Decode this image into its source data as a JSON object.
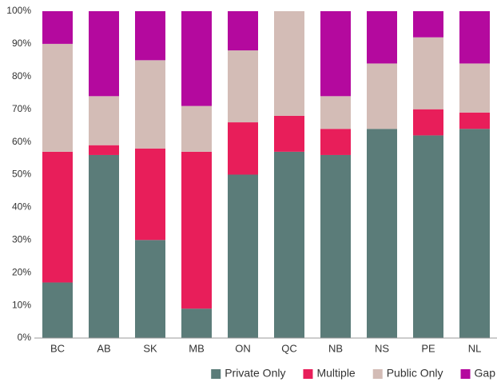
{
  "chart_data": {
    "type": "stacked_bar",
    "categories": [
      "BC",
      "AB",
      "SK",
      "MB",
      "ON",
      "QC",
      "NB",
      "NS",
      "PE",
      "NL"
    ],
    "series": [
      {
        "name": "Private Only",
        "color": "#5b7c79",
        "values": [
          17,
          56,
          30,
          9,
          50,
          57,
          56,
          64,
          62,
          64
        ]
      },
      {
        "name": "Multiple",
        "color": "#e81e5a",
        "values": [
          40,
          3,
          28,
          48,
          16,
          11,
          8,
          0,
          8,
          5
        ]
      },
      {
        "name": "Public Only",
        "color": "#d3bcb6",
        "values": [
          33,
          15,
          27,
          14,
          22,
          32,
          10,
          20,
          22,
          15
        ]
      },
      {
        "name": "Gap",
        "color": "#b4099e",
        "values": [
          10,
          26,
          15,
          29,
          12,
          0,
          26,
          16,
          8,
          16
        ]
      }
    ],
    "ylim": [
      0,
      100
    ],
    "yticks": [
      {
        "value": 0,
        "label": "0%"
      },
      {
        "value": 10,
        "label": "10%"
      },
      {
        "value": 20,
        "label": "20%"
      },
      {
        "value": 30,
        "label": "30%"
      },
      {
        "value": 40,
        "label": "40%"
      },
      {
        "value": 50,
        "label": "50%"
      },
      {
        "value": 60,
        "label": "60%"
      },
      {
        "value": 70,
        "label": "70%"
      },
      {
        "value": 80,
        "label": "80%"
      },
      {
        "value": 90,
        "label": "90%"
      },
      {
        "value": 100,
        "label": "100%"
      }
    ],
    "legend": "bottom-right"
  }
}
